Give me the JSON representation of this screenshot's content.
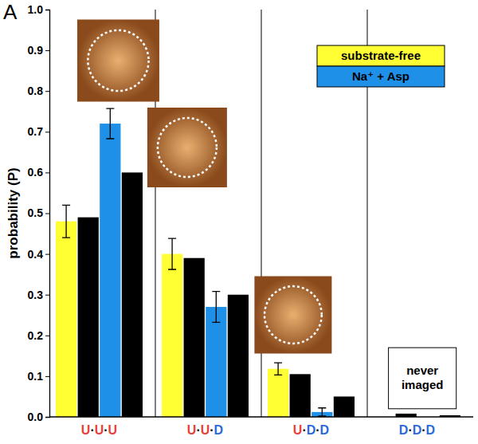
{
  "chart_data": {
    "type": "bar",
    "title": "A",
    "y_label": "probability (P)",
    "categories": [
      "U·U·U",
      "U·U·D",
      "U·D·D",
      "D·D·D"
    ],
    "series": [
      {
        "name": "substrate-free",
        "color": "#ffff33",
        "values": [
          0.48,
          0.4,
          0.118,
          null
        ],
        "errors": [
          0.04,
          0.038,
          0.015,
          null
        ]
      },
      {
        "color": "#000000",
        "values": [
          0.49,
          0.39,
          0.105,
          0.008
        ]
      },
      {
        "name": "Na⁺ + Asp",
        "color": "#1e90e8",
        "values": [
          0.72,
          0.27,
          0.012,
          null
        ],
        "errors": [
          0.037,
          0.038,
          0.01,
          null
        ]
      },
      {
        "color": "#000000",
        "values": [
          0.6,
          0.3,
          0.05,
          0.004
        ]
      }
    ],
    "annotations": [
      "never imaged"
    ],
    "ylim": [
      0,
      1
    ],
    "yticks": [
      {
        "value": 0,
        "label": "0.0"
      },
      0.1,
      0.2,
      0.3,
      0.4,
      0.5,
      0.6,
      0.7,
      0.8,
      0.9,
      {
        "value": 1,
        "label": "1.0"
      }
    ],
    "legend": "top-right",
    "grid": false
  }
}
